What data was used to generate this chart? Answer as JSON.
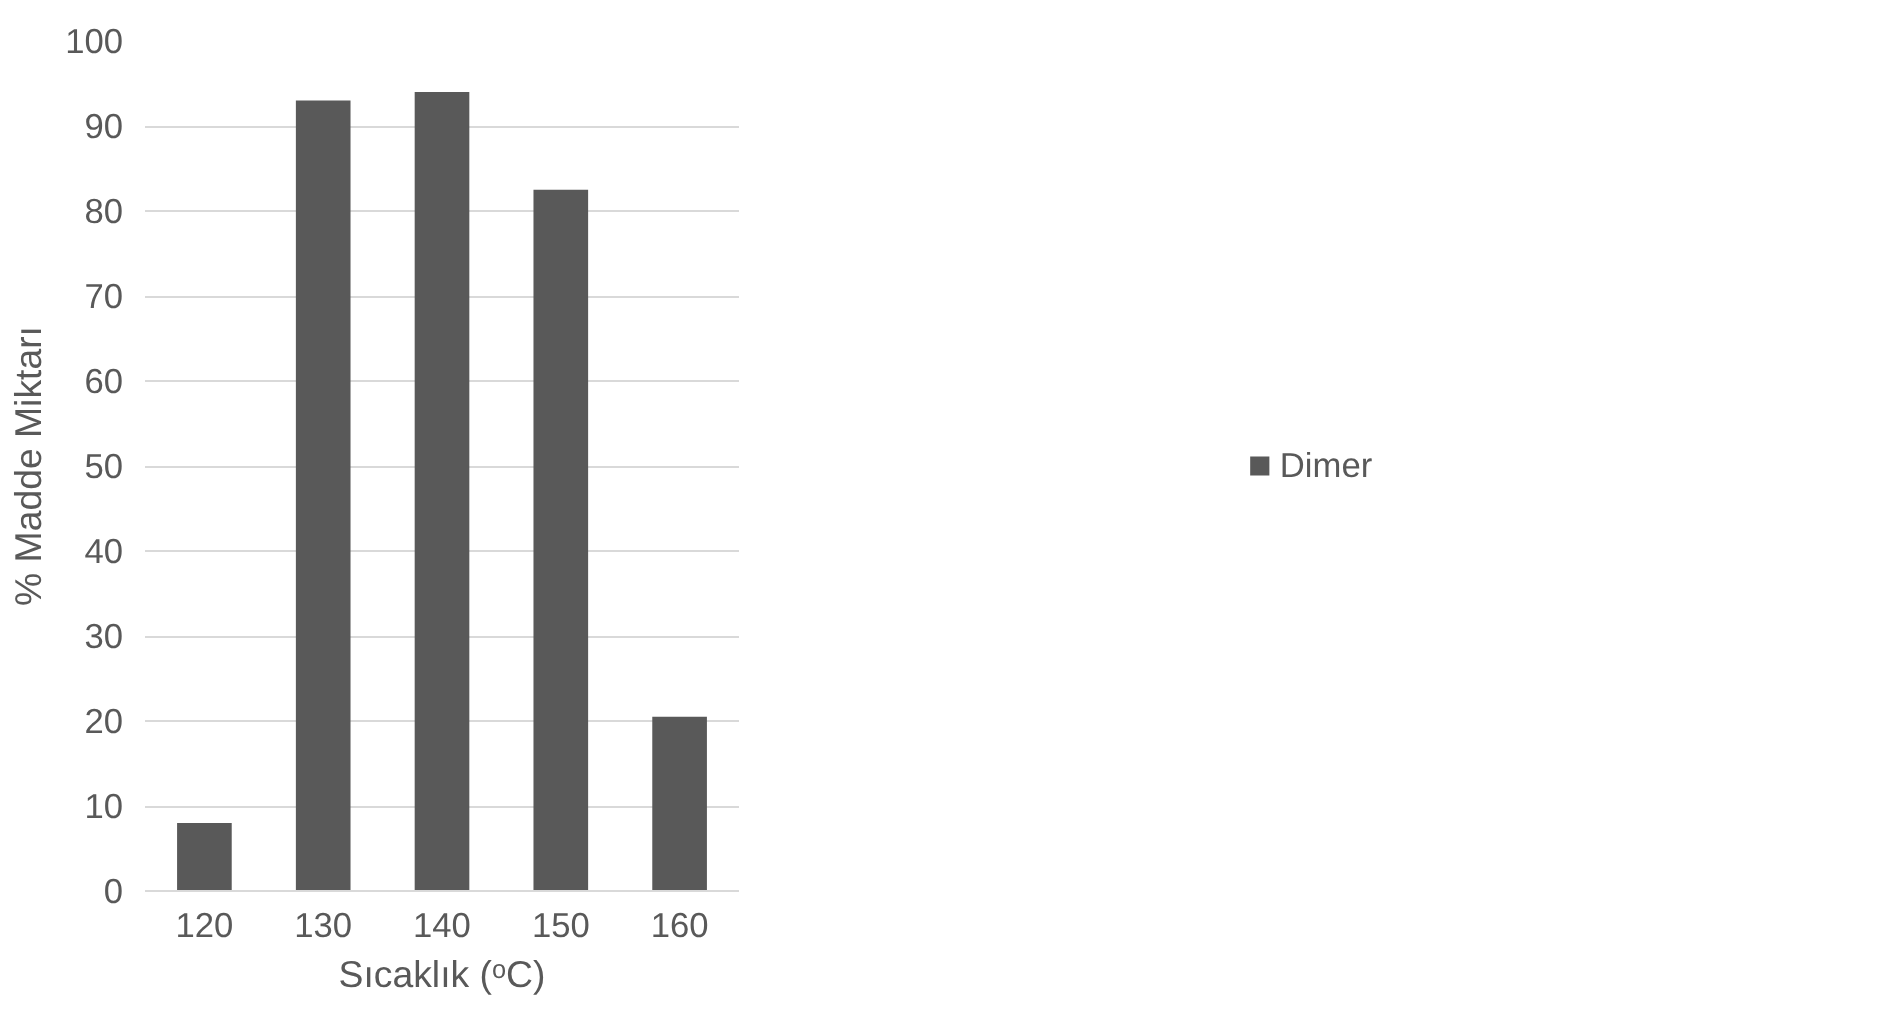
{
  "chart_data": {
    "type": "bar",
    "xlabel": "Sıcaklık (ᵒC)",
    "ylabel": "% Madde Miktarı",
    "categories": [
      "120",
      "130",
      "140",
      "150",
      "160"
    ],
    "series": [
      {
        "name": "Dimer",
        "color": "#595959",
        "values": [
          8,
          93,
          94,
          82.5,
          20.5
        ]
      }
    ],
    "ylim": [
      0,
      100
    ],
    "yticks": [
      0,
      10,
      20,
      30,
      40,
      50,
      60,
      70,
      80,
      90,
      100
    ],
    "grid": "y",
    "legend": "right"
  }
}
